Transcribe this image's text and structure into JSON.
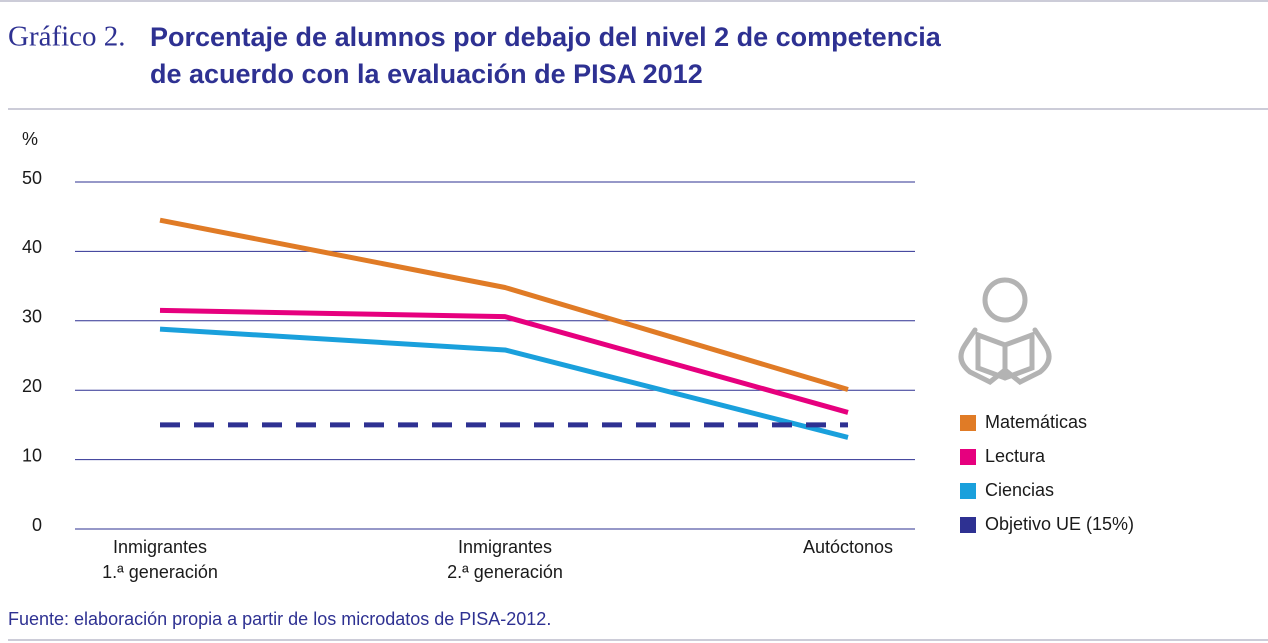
{
  "chart_data": {
    "type": "line",
    "label": "Gráfico 2.",
    "title": [
      "Porcentaje de alumnos por debajo del nivel 2 de competencia",
      "de acuerdo con la evaluación de PISA 2012"
    ],
    "y_label": "%",
    "categories": [
      [
        "Inmigrantes",
        "1.ª generación"
      ],
      [
        "Inmigrantes",
        "2.ª generación"
      ],
      [
        "Autóctonos"
      ]
    ],
    "series": [
      {
        "name": "Matemáticas",
        "color": "#e07b26",
        "values": [
          44.5,
          34.8,
          20.1
        ]
      },
      {
        "name": "Lectura",
        "color": "#e6007e",
        "values": [
          31.5,
          30.6,
          16.8
        ]
      },
      {
        "name": "Ciencias",
        "color": "#1aa0dc",
        "values": [
          28.8,
          25.8,
          13.2
        ]
      },
      {
        "name": "Objetivo UE (15%)",
        "color": "#2e3192",
        "values": [
          15,
          15,
          15
        ],
        "dashed": true
      }
    ],
    "ylim": [
      0,
      50
    ],
    "yticks": [
      0,
      10,
      20,
      30,
      40,
      50
    ],
    "grid": true,
    "source": "Fuente: elaboración propia a partir de los microdatos de PISA-2012."
  }
}
